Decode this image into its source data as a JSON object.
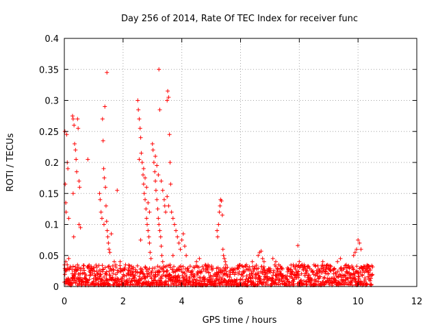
{
  "chart_data": {
    "type": "scatter",
    "title": "Day 256 of 2014, Rate Of TEC Index for receiver func",
    "xlabel": "GPS time / hours",
    "ylabel": "ROTI / TECUs",
    "xlim": [
      0,
      12
    ],
    "ylim": [
      0,
      0.4
    ],
    "grid": true,
    "x_ticks": [
      0,
      2,
      4,
      6,
      8,
      10,
      12
    ],
    "x_tick_labels": [
      "0",
      "2",
      "4",
      "6",
      "8",
      "10",
      "12"
    ],
    "y_ticks": [
      0,
      0.05,
      0.1,
      0.15,
      0.2,
      0.25,
      0.3,
      0.35,
      0.4
    ],
    "y_tick_labels": [
      "0",
      "0.05",
      "0.1",
      "0.15",
      "0.2",
      "0.25",
      "0.3",
      "0.35",
      "0.4"
    ],
    "marker": "+",
    "color": "#ff0000",
    "series": [
      {
        "name": "ROTI",
        "points": [
          [
            0.02,
            0.25
          ],
          [
            0.03,
            0.165
          ],
          [
            0.05,
            0.135
          ],
          [
            0.06,
            0.12
          ],
          [
            0.08,
            0.245
          ],
          [
            0.1,
            0.2
          ],
          [
            0.12,
            0.19
          ],
          [
            0.15,
            0.11
          ],
          [
            0.05,
            0.04
          ],
          [
            0.1,
            0.035
          ],
          [
            0.15,
            0.045
          ],
          [
            0.2,
            0.03
          ],
          [
            0.28,
            0.275
          ],
          [
            0.3,
            0.27
          ],
          [
            0.33,
            0.26
          ],
          [
            0.35,
            0.23
          ],
          [
            0.38,
            0.22
          ],
          [
            0.4,
            0.205
          ],
          [
            0.42,
            0.185
          ],
          [
            0.45,
            0.27
          ],
          [
            0.47,
            0.255
          ],
          [
            0.5,
            0.17
          ],
          [
            0.52,
            0.16
          ],
          [
            0.5,
            0.1
          ],
          [
            0.55,
            0.095
          ],
          [
            0.3,
            0.15
          ],
          [
            0.32,
            0.08
          ],
          [
            0.8,
            0.205
          ],
          [
            1.2,
            0.15
          ],
          [
            1.22,
            0.14
          ],
          [
            1.25,
            0.12
          ],
          [
            1.28,
            0.11
          ],
          [
            1.3,
            0.27
          ],
          [
            1.32,
            0.235
          ],
          [
            1.34,
            0.19
          ],
          [
            1.36,
            0.175
          ],
          [
            1.38,
            0.29
          ],
          [
            1.4,
            0.16
          ],
          [
            1.42,
            0.13
          ],
          [
            1.44,
            0.105
          ],
          [
            1.46,
            0.09
          ],
          [
            1.48,
            0.08
          ],
          [
            1.5,
            0.07
          ],
          [
            1.52,
            0.06
          ],
          [
            1.55,
            0.055
          ],
          [
            1.45,
            0.345
          ],
          [
            1.35,
            0.1
          ],
          [
            1.6,
            0.085
          ],
          [
            1.7,
            0.04
          ],
          [
            1.75,
            0.035
          ],
          [
            1.8,
            0.155
          ],
          [
            1.9,
            0.04
          ],
          [
            2.5,
            0.3
          ],
          [
            2.52,
            0.285
          ],
          [
            2.55,
            0.27
          ],
          [
            2.58,
            0.255
          ],
          [
            2.6,
            0.24
          ],
          [
            2.62,
            0.215
          ],
          [
            2.65,
            0.2
          ],
          [
            2.68,
            0.18
          ],
          [
            2.7,
            0.165
          ],
          [
            2.72,
            0.15
          ],
          [
            2.75,
            0.14
          ],
          [
            2.78,
            0.125
          ],
          [
            2.8,
            0.11
          ],
          [
            2.82,
            0.1
          ],
          [
            2.85,
            0.09
          ],
          [
            2.88,
            0.08
          ],
          [
            2.9,
            0.07
          ],
          [
            2.92,
            0.055
          ],
          [
            2.95,
            0.045
          ],
          [
            2.6,
            0.075
          ],
          [
            2.55,
            0.205
          ],
          [
            2.7,
            0.19
          ],
          [
            2.75,
            0.175
          ],
          [
            2.8,
            0.16
          ],
          [
            2.85,
            0.135
          ],
          [
            2.9,
            0.12
          ],
          [
            3.0,
            0.23
          ],
          [
            3.02,
            0.22
          ],
          [
            3.05,
            0.2
          ],
          [
            3.08,
            0.185
          ],
          [
            3.1,
            0.17
          ],
          [
            3.12,
            0.155
          ],
          [
            3.15,
            0.14
          ],
          [
            3.18,
            0.125
          ],
          [
            3.2,
            0.11
          ],
          [
            3.22,
            0.1
          ],
          [
            3.25,
            0.09
          ],
          [
            3.28,
            0.08
          ],
          [
            3.3,
            0.065
          ],
          [
            3.32,
            0.05
          ],
          [
            3.35,
            0.04
          ],
          [
            3.22,
            0.35
          ],
          [
            3.25,
            0.285
          ],
          [
            3.1,
            0.21
          ],
          [
            3.15,
            0.195
          ],
          [
            3.2,
            0.18
          ],
          [
            3.3,
            0.17
          ],
          [
            3.35,
            0.155
          ],
          [
            3.4,
            0.14
          ],
          [
            3.42,
            0.13
          ],
          [
            3.45,
            0.12
          ],
          [
            3.5,
            0.3
          ],
          [
            3.52,
            0.315
          ],
          [
            3.55,
            0.305
          ],
          [
            3.58,
            0.245
          ],
          [
            3.6,
            0.2
          ],
          [
            3.62,
            0.165
          ],
          [
            3.5,
            0.145
          ],
          [
            3.55,
            0.13
          ],
          [
            3.65,
            0.12
          ],
          [
            3.7,
            0.11
          ],
          [
            3.75,
            0.1
          ],
          [
            3.8,
            0.09
          ],
          [
            3.85,
            0.08
          ],
          [
            3.9,
            0.07
          ],
          [
            3.95,
            0.06
          ],
          [
            4.0,
            0.075
          ],
          [
            4.05,
            0.085
          ],
          [
            4.1,
            0.065
          ],
          [
            4.15,
            0.05
          ],
          [
            3.7,
            0.05
          ],
          [
            3.6,
            0.035
          ],
          [
            5.25,
            0.1
          ],
          [
            5.28,
            0.12
          ],
          [
            5.3,
            0.13
          ],
          [
            5.32,
            0.14
          ],
          [
            5.35,
            0.138
          ],
          [
            5.38,
            0.115
          ],
          [
            5.2,
            0.09
          ],
          [
            5.22,
            0.08
          ],
          [
            5.4,
            0.06
          ],
          [
            5.42,
            0.05
          ],
          [
            5.45,
            0.045
          ],
          [
            5.48,
            0.04
          ],
          [
            5.5,
            0.035
          ],
          [
            6.6,
            0.05
          ],
          [
            6.65,
            0.055
          ],
          [
            6.7,
            0.057
          ],
          [
            6.75,
            0.045
          ],
          [
            6.8,
            0.04
          ],
          [
            7.1,
            0.045
          ],
          [
            7.2,
            0.04
          ],
          [
            7.3,
            0.035
          ],
          [
            7.4,
            0.03
          ],
          [
            7.95,
            0.066
          ],
          [
            8.0,
            0.04
          ],
          [
            8.1,
            0.035
          ],
          [
            9.3,
            0.04
          ],
          [
            9.4,
            0.045
          ],
          [
            9.85,
            0.05
          ],
          [
            9.9,
            0.055
          ],
          [
            9.95,
            0.06
          ],
          [
            10.0,
            0.075
          ],
          [
            10.05,
            0.07
          ],
          [
            10.1,
            0.06
          ],
          [
            4.5,
            0.04
          ],
          [
            4.6,
            0.045
          ],
          [
            4.8,
            0.035
          ],
          [
            5.0,
            0.03
          ],
          [
            5.9,
            0.03
          ],
          [
            6.2,
            0.035
          ],
          [
            6.4,
            0.04
          ],
          [
            7.6,
            0.03
          ],
          [
            8.5,
            0.035
          ],
          [
            8.8,
            0.04
          ],
          [
            9.0,
            0.03
          ],
          [
            9.6,
            0.035
          ],
          [
            10.3,
            0.03
          ],
          [
            10.4,
            0.032
          ],
          [
            1.0,
            0.03
          ],
          [
            0.9,
            0.025
          ],
          [
            2.2,
            0.03
          ],
          [
            2.3,
            0.028
          ]
        ]
      }
    ],
    "dense_band": {
      "description": "dense cluster of points near the baseline",
      "x_range": [
        0,
        10.5
      ],
      "y_range": [
        0.002,
        0.035
      ]
    }
  }
}
